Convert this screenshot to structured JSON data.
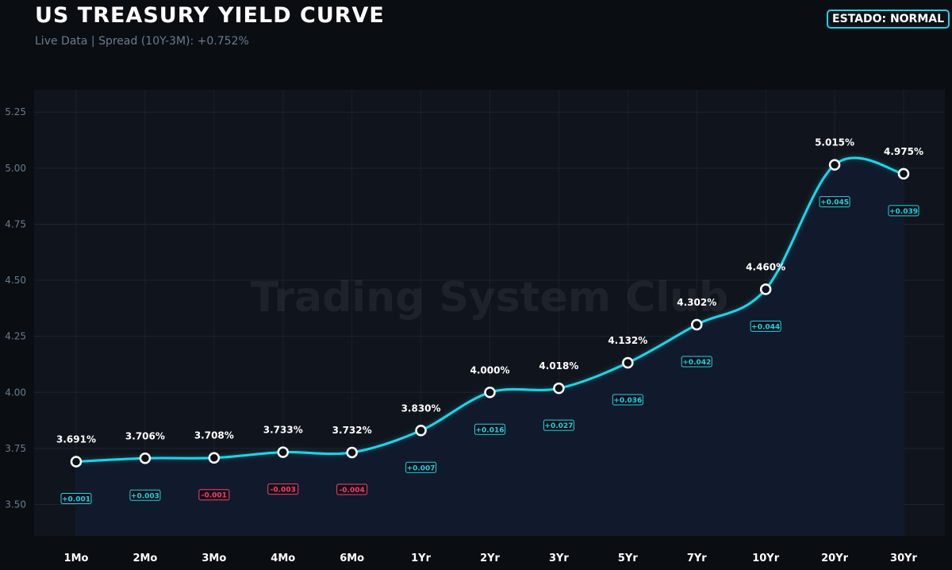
{
  "header": {
    "title": "US TREASURY YIELD CURVE",
    "subtitle": "Live Data | Spread (10Y-3M): +0.752%",
    "status": "ESTADO: NORMAL"
  },
  "watermark": "Trading System Club",
  "chart_data": {
    "type": "line",
    "title": "US TREASURY YIELD CURVE",
    "xlabel": "",
    "ylabel": "",
    "categories": [
      "1Mo",
      "2Mo",
      "3Mo",
      "4Mo",
      "6Mo",
      "1Yr",
      "2Yr",
      "3Yr",
      "5Yr",
      "7Yr",
      "10Yr",
      "20Yr",
      "30Yr"
    ],
    "values": [
      3.691,
      3.706,
      3.708,
      3.733,
      3.732,
      3.83,
      4.0,
      4.018,
      4.132,
      4.302,
      4.46,
      5.015,
      4.975
    ],
    "value_labels": [
      "3.691%",
      "3.706%",
      "3.708%",
      "3.733%",
      "3.732%",
      "3.830%",
      "4.000%",
      "4.018%",
      "4.132%",
      "4.302%",
      "4.460%",
      "5.015%",
      "4.975%"
    ],
    "changes": [
      "+0.001",
      "+0.003",
      "-0.001",
      "-0.003",
      "-0.004",
      "+0.007",
      "+0.016",
      "+0.027",
      "+0.036",
      "+0.042",
      "+0.044",
      "+0.045",
      "+0.039"
    ],
    "change_values": [
      0.001,
      0.003,
      -0.001,
      -0.003,
      -0.004,
      0.007,
      0.016,
      0.027,
      0.036,
      0.042,
      0.044,
      0.045,
      0.039
    ],
    "ylim": [
      3.36,
      5.35
    ],
    "yticks": [
      3.5,
      3.75,
      4.0,
      4.25,
      4.5,
      4.75,
      5.0,
      5.25
    ],
    "ytick_labels": [
      "3.50",
      "3.75",
      "4.00",
      "4.25",
      "4.50",
      "4.75",
      "5.00",
      "5.25"
    ],
    "grid": true,
    "colors": {
      "line": "#1fd3e6",
      "positive": "#1fd3e6",
      "negative": "#ff3b6b",
      "plot_bg": "#10151d",
      "fill": "#111a2c",
      "text": "#ffffff",
      "tick": "#6b7b8f"
    }
  }
}
